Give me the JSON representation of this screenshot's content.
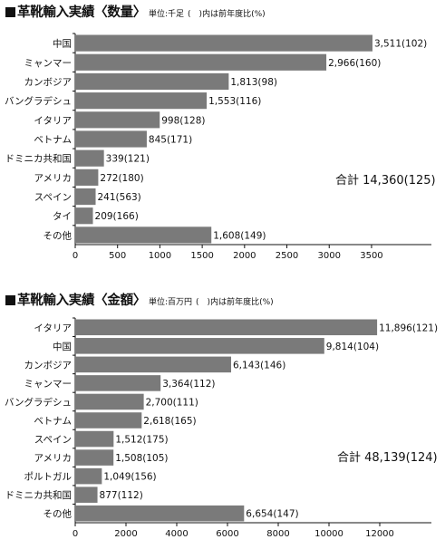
{
  "chart_data": [
    {
      "type": "bar",
      "orientation": "horizontal",
      "title": "革靴輸入実績〈数量〉",
      "unit_label": "単位:千足",
      "note": "(　)内は前年度比(%)",
      "categories": [
        "中国",
        "ミャンマー",
        "カンボジア",
        "バングラデシュ",
        "イタリア",
        "ベトナム",
        "ドミニカ共和国",
        "アメリカ",
        "スペイン",
        "タイ",
        "その他"
      ],
      "values": [
        3511,
        2966,
        1813,
        1553,
        998,
        845,
        339,
        272,
        241,
        209,
        1608
      ],
      "data_labels": [
        "3,511(102)",
        "2,966(160)",
        "1,813(98)",
        "1,553(116)",
        "998(128)",
        "845(171)",
        "339(121)",
        "272(180)",
        "241(563)",
        "209(166)",
        "1,608(149)"
      ],
      "xlim": [
        0,
        4100
      ],
      "xticks": [
        0,
        500,
        1000,
        1500,
        2000,
        2500,
        3000,
        3500
      ],
      "total_label": "合計",
      "total_value": "14,360(125)",
      "bar_color": "#7a7a7a",
      "grid": false
    },
    {
      "type": "bar",
      "orientation": "horizontal",
      "title": "革靴輸入実績〈金額〉",
      "unit_label": "単位:百万円",
      "note": "(　)内は前年度比(%)",
      "categories": [
        "イタリア",
        "中国",
        "カンボジア",
        "ミャンマー",
        "バングラデシュ",
        "ベトナム",
        "スペイン",
        "アメリカ",
        "ポルトガル",
        "ドミニカ共和国",
        "その他"
      ],
      "values": [
        11896,
        9814,
        6143,
        3364,
        2700,
        2618,
        1512,
        1508,
        1049,
        877,
        6654
      ],
      "data_labels": [
        "11,896(121)",
        "9,814(104)",
        "6,143(146)",
        "3,364(112)",
        "2,700(111)",
        "2,618(165)",
        "1,512(175)",
        "1,508(105)",
        "1,049(156)",
        "877(112)",
        "6,654(147)"
      ],
      "xlim": [
        0,
        14000
      ],
      "xticks": [
        0,
        2000,
        4000,
        6000,
        8000,
        10000,
        12000
      ],
      "total_label": "合計",
      "total_value": "48,139(124)",
      "bar_color": "#7a7a7a",
      "grid": false
    }
  ]
}
